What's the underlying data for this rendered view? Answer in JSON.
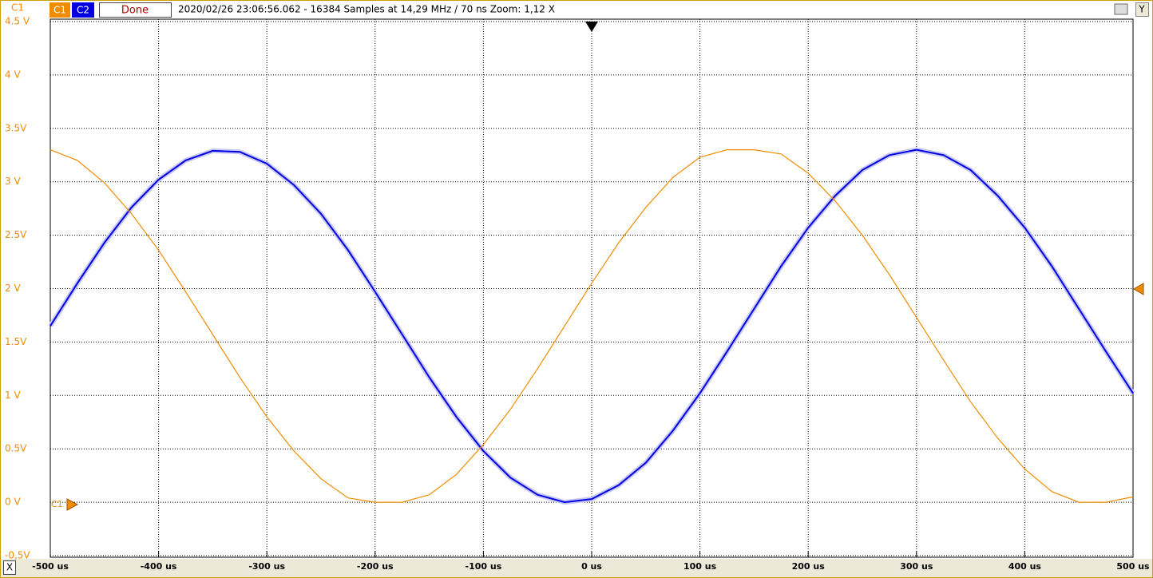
{
  "ui": {
    "corner_label": "C1",
    "buttons": [
      "C1",
      "C2",
      "Done"
    ],
    "info": "2020/02/26 23:06:56.062 - 16384 Samples at 14,29 MHz / 70 ns Zoom: 1,12 X",
    "y_button": "Y",
    "x_button": "X",
    "ground_marker": "C1"
  },
  "chart_data": {
    "type": "line",
    "x": [
      -500,
      -475,
      -450,
      -425,
      -400,
      -375,
      -350,
      -325,
      -300,
      -275,
      -250,
      -225,
      -200,
      -175,
      -150,
      -125,
      -100,
      -75,
      -50,
      -25,
      0,
      25,
      50,
      75,
      100,
      125,
      150,
      175,
      200,
      225,
      250,
      275,
      300,
      325,
      350,
      375,
      400,
      425,
      450,
      475,
      500
    ],
    "series": [
      {
        "name": "C1",
        "color": "#f08c00",
        "values": [
          3.3,
          3.2,
          2.99,
          2.7,
          2.36,
          1.97,
          1.57,
          1.17,
          0.8,
          0.48,
          0.22,
          0.04,
          0,
          0,
          0.07,
          0.26,
          0.54,
          0.87,
          1.25,
          1.65,
          2.05,
          2.43,
          2.76,
          3.04,
          3.23,
          3.3,
          3.3,
          3.26,
          3.08,
          2.82,
          2.5,
          2.13,
          1.73,
          1.33,
          0.94,
          0.6,
          0.31,
          0.1,
          0,
          0,
          0.05
        ]
      },
      {
        "name": "C2",
        "color": "#0000e0",
        "values": [
          1.65,
          2.05,
          2.43,
          2.76,
          3.02,
          3.2,
          3.29,
          3.28,
          3.17,
          2.97,
          2.7,
          2.36,
          1.97,
          1.57,
          1.17,
          0.8,
          0.48,
          0.23,
          0.07,
          0,
          0.03,
          0.16,
          0.37,
          0.67,
          1.02,
          1.41,
          1.81,
          2.21,
          2.57,
          2.87,
          3.11,
          3.25,
          3.3,
          3.25,
          3.11,
          2.87,
          2.57,
          2.21,
          1.81,
          1.41,
          1.02
        ]
      }
    ],
    "xlim": [
      -500,
      500
    ],
    "xticks": [
      {
        "value": -500,
        "label": "-500 us"
      },
      {
        "value": -400,
        "label": "-400 us"
      },
      {
        "value": -300,
        "label": "-300 us"
      },
      {
        "value": -200,
        "label": "-200 us"
      },
      {
        "value": -100,
        "label": "-100 us"
      },
      {
        "value": 0,
        "label": "0 us"
      },
      {
        "value": 100,
        "label": "100 us"
      },
      {
        "value": 200,
        "label": "200 us"
      },
      {
        "value": 300,
        "label": "300 us"
      },
      {
        "value": 400,
        "label": "400 us"
      },
      {
        "value": 500,
        "label": "500 us"
      }
    ],
    "ylim": [
      -0.5,
      4.5
    ],
    "yticks": [
      {
        "value": -0.5,
        "label": "-0,5V"
      },
      {
        "value": 0,
        "label": "0 V"
      },
      {
        "value": 0.5,
        "label": "0.5V"
      },
      {
        "value": 1,
        "label": "1 V"
      },
      {
        "value": 1.5,
        "label": "1.5V"
      },
      {
        "value": 2,
        "label": "2 V"
      },
      {
        "value": 2.5,
        "label": "2.5V"
      },
      {
        "value": 3,
        "label": "3 V"
      },
      {
        "value": 3.5,
        "label": "3.5V"
      },
      {
        "value": 4,
        "label": "4 V"
      },
      {
        "value": 4.5,
        "label": "4.5 V"
      }
    ],
    "grid": true
  }
}
